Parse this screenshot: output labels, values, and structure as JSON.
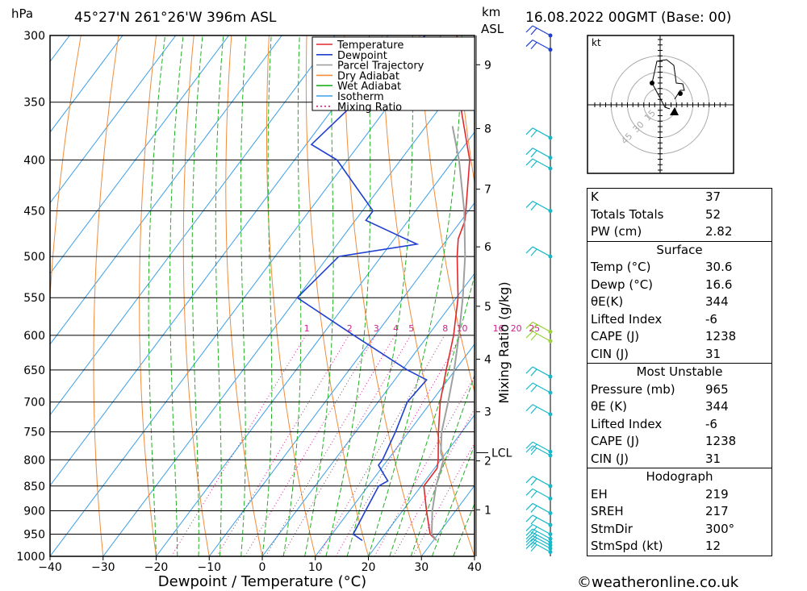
{
  "header": {
    "pressure_unit": "hPa",
    "location": "45°27'N  261°26'W  396m  ASL",
    "height_unit_1": "km",
    "height_unit_2": "ASL",
    "datetime": "16.08.2022  00GMT  (Base: 00)"
  },
  "footer": {
    "copyright": "©weatheronline.co.uk"
  },
  "colors": {
    "temperature": "#e0282d",
    "dewpoint": "#1f3fd0",
    "parcel": "#a0a0a0",
    "dry_adiabat": "#f08c3c",
    "wet_adiabat": "#22b022",
    "isotherm": "#3aa0e8",
    "mixing_ratio": "#d0208c"
  },
  "chart_data": {
    "type": "line",
    "title": "",
    "xlabel": "Dewpoint / Temperature (°C)",
    "ylabel": "Mixing Ratio (g/kg)",
    "x_ticks": [
      -40,
      -30,
      -20,
      -10,
      0,
      10,
      20,
      30,
      40
    ],
    "pressure_levels": [
      300,
      350,
      400,
      450,
      500,
      550,
      600,
      650,
      700,
      750,
      800,
      850,
      900,
      950,
      1000
    ],
    "km_ticks": [
      {
        "km": 1,
        "p": 898
      },
      {
        "km": 2,
        "p": 802
      },
      {
        "km": 3,
        "p": 716
      },
      {
        "km": 4,
        "p": 634
      },
      {
        "km": 5,
        "p": 561
      },
      {
        "km": 6,
        "p": 489
      },
      {
        "km": 7,
        "p": 428
      },
      {
        "km": 8,
        "p": 372
      },
      {
        "km": 9,
        "p": 321
      }
    ],
    "lcl_label": "LCL",
    "lcl_pressure": 787,
    "mixing_ratio_values": [
      "1",
      "2",
      "3",
      "4",
      "5",
      "8",
      "10",
      "16",
      "20",
      "25"
    ],
    "mixing_ratio_label_pressure": 598,
    "legend_position": "top-right",
    "series": [
      {
        "name": "Temperature",
        "points": [
          [
            964,
            30.6
          ],
          [
            950,
            28.5
          ],
          [
            900,
            24.5
          ],
          [
            850,
            20.5
          ],
          [
            816,
            20.5
          ],
          [
            800,
            19.5
          ],
          [
            750,
            15.6
          ],
          [
            700,
            11.7
          ],
          [
            650,
            8.3
          ],
          [
            600,
            4.8
          ],
          [
            550,
            0.3
          ],
          [
            500,
            -5.7
          ],
          [
            480,
            -8.0
          ],
          [
            460,
            -9.3
          ],
          [
            400,
            -17.0
          ],
          [
            350,
            -27.0
          ],
          [
            300,
            -37.0
          ]
        ]
      },
      {
        "name": "Dewpoint",
        "points": [
          [
            964,
            16.6
          ],
          [
            950,
            14.0
          ],
          [
            900,
            13.0
          ],
          [
            850,
            12.0
          ],
          [
            840,
            13.0
          ],
          [
            825,
            11.0
          ],
          [
            810,
            9.0
          ],
          [
            800,
            9.0
          ],
          [
            750,
            7.5
          ],
          [
            700,
            5.5
          ],
          [
            665,
            6.0
          ],
          [
            650,
            1.0
          ],
          [
            600,
            -14.0
          ],
          [
            550,
            -30.0
          ],
          [
            500,
            -28.0
          ],
          [
            486,
            -15.0
          ],
          [
            460,
            -28.0
          ],
          [
            450,
            -28.0
          ],
          [
            400,
            -42.0
          ],
          [
            386,
            -49.0
          ],
          [
            300,
            -43.0
          ]
        ]
      },
      {
        "name": "Parcel Trajectory",
        "points": [
          [
            787,
            19.0
          ],
          [
            800,
            20.5
          ],
          [
            850,
            22.8
          ],
          [
            900,
            25.6
          ],
          [
            950,
            28.8
          ],
          [
            964,
            30.6
          ],
          [
            750,
            16.2
          ],
          [
            700,
            13.2
          ],
          [
            650,
            9.8
          ],
          [
            600,
            5.8
          ],
          [
            550,
            1.2
          ],
          [
            500,
            -4.2
          ],
          [
            450,
            -10.8
          ],
          [
            400,
            -19.0
          ],
          [
            370,
            -25.0
          ]
        ]
      },
      {
        "name": "Dry Adiabat",
        "points": []
      },
      {
        "name": "Wet Adiabat",
        "points": []
      },
      {
        "name": "Isotherm",
        "points": []
      },
      {
        "name": "Mixing Ratio",
        "points": []
      }
    ]
  },
  "hodograph": {
    "unit": "kt",
    "ring_labels": [
      "15",
      "30",
      "45"
    ]
  },
  "stats": {
    "top": [
      {
        "label": "K",
        "value": "37"
      },
      {
        "label": "Totals Totals",
        "value": "52"
      },
      {
        "label": "PW (cm)",
        "value": "2.82"
      }
    ],
    "surface": {
      "title": "Surface",
      "rows": [
        {
          "label": "Temp (°C)",
          "value": "30.6"
        },
        {
          "label": "Dewp (°C)",
          "value": "16.6"
        },
        {
          "label": "θE(K)",
          "value": "344"
        },
        {
          "label": "Lifted Index",
          "value": "-6"
        },
        {
          "label": "CAPE (J)",
          "value": "1238"
        },
        {
          "label": "CIN (J)",
          "value": "31"
        }
      ]
    },
    "most_unstable": {
      "title": "Most Unstable",
      "rows": [
        {
          "label": "Pressure (mb)",
          "value": "965"
        },
        {
          "label": "θE (K)",
          "value": "344"
        },
        {
          "label": "Lifted Index",
          "value": "-6"
        },
        {
          "label": "CAPE (J)",
          "value": "1238"
        },
        {
          "label": "CIN (J)",
          "value": "31"
        }
      ]
    },
    "hodograph": {
      "title": "Hodograph",
      "rows": [
        {
          "label": "EH",
          "value": "219"
        },
        {
          "label": "SREH",
          "value": "217"
        },
        {
          "label": "StmDir",
          "value": "300°"
        },
        {
          "label": "StmSpd (kt)",
          "value": "12"
        }
      ]
    }
  }
}
